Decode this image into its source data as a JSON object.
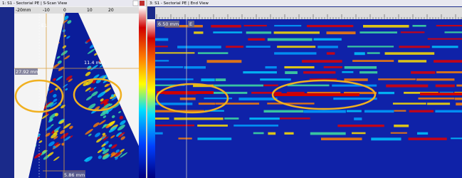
{
  "left_view": {
    "title": "1: S1 - Sectorial PE | S-Scan View",
    "top_ruler": [
      "-20mm",
      "-10",
      "0",
      "10",
      "20"
    ],
    "marker": "E1",
    "depth_label": "27.92 mm",
    "right_label": "11.4 mm",
    "bottom_label": "5.86 mm"
  },
  "right_view": {
    "title": "3: S1 - Sectorial PE | End View",
    "position_label": "6.50 mm",
    "marker": "E"
  }
}
